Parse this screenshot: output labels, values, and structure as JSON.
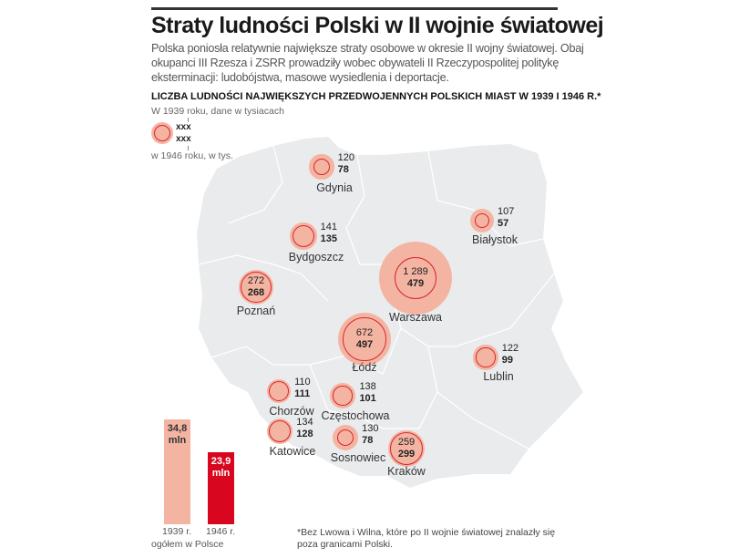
{
  "title": "Straty ludności Polski w II wojnie światowej",
  "lead": "Polska poniosła relatywnie największe straty osobowe w okresie II wojny światowej. Obaj okupanci III Rzesza i ZSRR prowadziły wobec obywateli II Rzeczypospolitej politykę eksterminacji: ludobójstwa, masowe wysiedlenia i deportacje.",
  "subheading": "LICZBA LUDNOŚCI NAJWIĘKSZYCH PRZEDWOJENNYCH POLSKICH MIAST W 1939 I 1946 R.*",
  "legend": {
    "top": "W 1939 roku, dane w tysiacach",
    "x1": "xxx",
    "x2": "xxx",
    "bottom": "w 1946 roku, w tys."
  },
  "colors": {
    "pop1939": "#f4b4a2",
    "pop1946": "#d9252e",
    "map": "#e9ebed"
  },
  "cities": [
    {
      "name": "Gdynia",
      "y1939": "120",
      "y1946": "78",
      "v1939": 120,
      "v1946": 78
    },
    {
      "name": "Białystok",
      "y1939": "107",
      "y1946": "57",
      "v1939": 107,
      "v1946": 57
    },
    {
      "name": "Bydgoszcz",
      "y1939": "141",
      "y1946": "135",
      "v1939": 141,
      "v1946": 135
    },
    {
      "name": "Poznań",
      "y1939": "272",
      "y1946": "268",
      "v1939": 272,
      "v1946": 268
    },
    {
      "name": "Warszawa",
      "y1939": "1 289",
      "y1946": "479",
      "v1939": 1289,
      "v1946": 479
    },
    {
      "name": "Łódź",
      "y1939": "672",
      "y1946": "497",
      "v1939": 672,
      "v1946": 497
    },
    {
      "name": "Lublin",
      "y1939": "122",
      "y1946": "99",
      "v1939": 122,
      "v1946": 99
    },
    {
      "name": "Chorzów",
      "y1939": "110",
      "y1946": "111",
      "v1939": 110,
      "v1946": 111
    },
    {
      "name": "Częstochowa",
      "y1939": "138",
      "y1946": "101",
      "v1939": 138,
      "v1946": 101
    },
    {
      "name": "Katowice",
      "y1939": "134",
      "y1946": "128",
      "v1939": 134,
      "v1946": 128
    },
    {
      "name": "Sosnowiec",
      "y1939": "130",
      "y1946": "78",
      "v1939": 130,
      "v1946": 78
    },
    {
      "name": "Kraków",
      "y1939": "259",
      "y1946": "299",
      "v1939": 259,
      "v1946": 299
    }
  ],
  "totals": [
    {
      "value": 34.8,
      "label1": "34,8",
      "label2": "mln",
      "caption": "1939 r.",
      "color": "#f4b4a2"
    },
    {
      "value": 23.9,
      "label1": "23,9",
      "label2": "mln",
      "caption": "1946 r.",
      "color": "#d9061f"
    }
  ],
  "totals_caption": "ogółem w Polsce",
  "footnote": "*Bez Lwowa i Wilna, które po II wojnie światowej znalazły się poza granicami Polski."
}
